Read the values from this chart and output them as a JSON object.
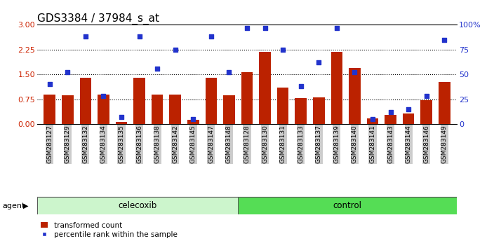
{
  "title": "GDS3384 / 37984_s_at",
  "samples": [
    "GSM283127",
    "GSM283129",
    "GSM283132",
    "GSM283134",
    "GSM283135",
    "GSM283136",
    "GSM283138",
    "GSM283142",
    "GSM283145",
    "GSM283147",
    "GSM283148",
    "GSM283128",
    "GSM283130",
    "GSM283131",
    "GSM283133",
    "GSM283137",
    "GSM283139",
    "GSM283140",
    "GSM283141",
    "GSM283143",
    "GSM283144",
    "GSM283146",
    "GSM283149"
  ],
  "transformed_count": [
    0.88,
    0.87,
    1.4,
    0.88,
    0.07,
    1.4,
    0.9,
    0.9,
    0.12,
    1.4,
    0.87,
    1.57,
    2.18,
    1.1,
    0.78,
    0.8,
    2.18,
    1.7,
    0.18,
    0.27,
    0.32,
    0.72,
    1.27
  ],
  "percentile_rank": [
    40,
    52,
    88,
    28,
    7,
    88,
    56,
    75,
    5,
    88,
    52,
    97,
    97,
    75,
    38,
    62,
    97,
    52,
    5,
    12,
    15,
    28,
    85
  ],
  "celecoxib_count": 11,
  "control_count": 12,
  "left_ylim": [
    0,
    3
  ],
  "right_ylim": [
    0,
    100
  ],
  "left_yticks": [
    0,
    0.75,
    1.5,
    2.25,
    3
  ],
  "right_yticks": [
    0,
    25,
    50,
    75,
    100
  ],
  "dotted_lines": [
    0.75,
    1.5,
    2.25
  ],
  "bar_color": "#bb2200",
  "marker_color": "#2233cc",
  "celecoxib_bg": "#ccf5cc",
  "control_bg": "#55dd55",
  "xtick_bg": "#cccccc",
  "agent_label": "agent",
  "celecoxib_label": "celecoxib",
  "control_label": "control",
  "legend_bar": "transformed count",
  "legend_marker": "percentile rank within the sample",
  "title_fontsize": 11,
  "tick_fontsize": 6.5,
  "axis_color_left": "#cc2200",
  "axis_color_right": "#2233cc",
  "fig_width": 7.04,
  "fig_height": 3.54,
  "dpi": 100
}
